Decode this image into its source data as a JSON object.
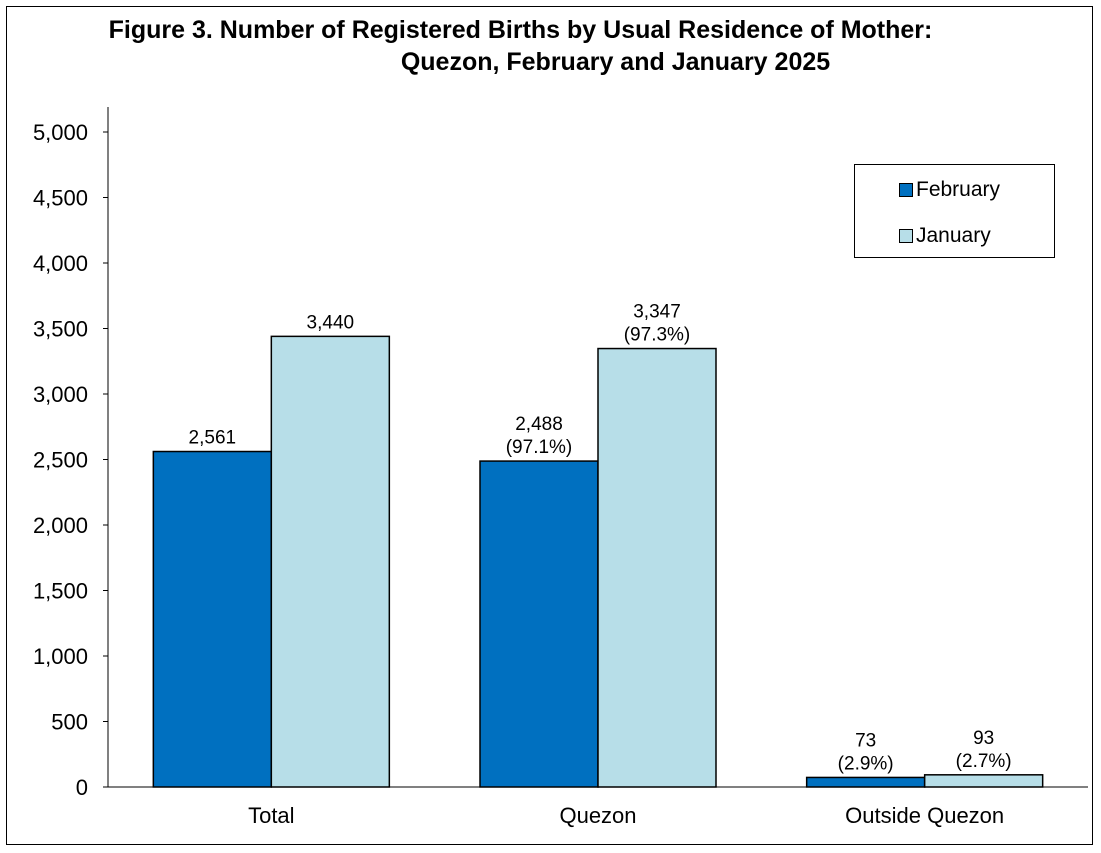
{
  "title_line1": "Figure 3. Number of Registered Births  by Usual Residence of Mother:",
  "title_line2": "Quezon, February and January 2025",
  "chart_data": {
    "type": "bar",
    "categories": [
      "Total",
      "Quezon",
      "Outside Quezon"
    ],
    "series": [
      {
        "name": "February",
        "color": "#0070C0",
        "values": [
          2561,
          2488,
          73
        ],
        "labels": [
          [
            "2,561"
          ],
          [
            "2,488",
            "(97.1%)"
          ],
          [
            "73",
            "(2.9%)"
          ]
        ]
      },
      {
        "name": "January",
        "color": "#B7DEE8",
        "values": [
          3440,
          3347,
          93
        ],
        "labels": [
          [
            "3,440"
          ],
          [
            "3,347",
            "(97.3%)"
          ],
          [
            "93",
            "(2.7%)"
          ]
        ]
      }
    ],
    "ylim": [
      0,
      5000
    ],
    "yticks": [
      0,
      500,
      1000,
      1500,
      2000,
      2500,
      3000,
      3500,
      4000,
      4500,
      5000
    ],
    "ytick_labels": [
      "0",
      "500",
      "1,000",
      "1,500",
      "2,000",
      "2,500",
      "3,000",
      "3,500",
      "4,000",
      "4,500",
      "5,000"
    ],
    "grid": false,
    "legend_position": "top-right"
  }
}
